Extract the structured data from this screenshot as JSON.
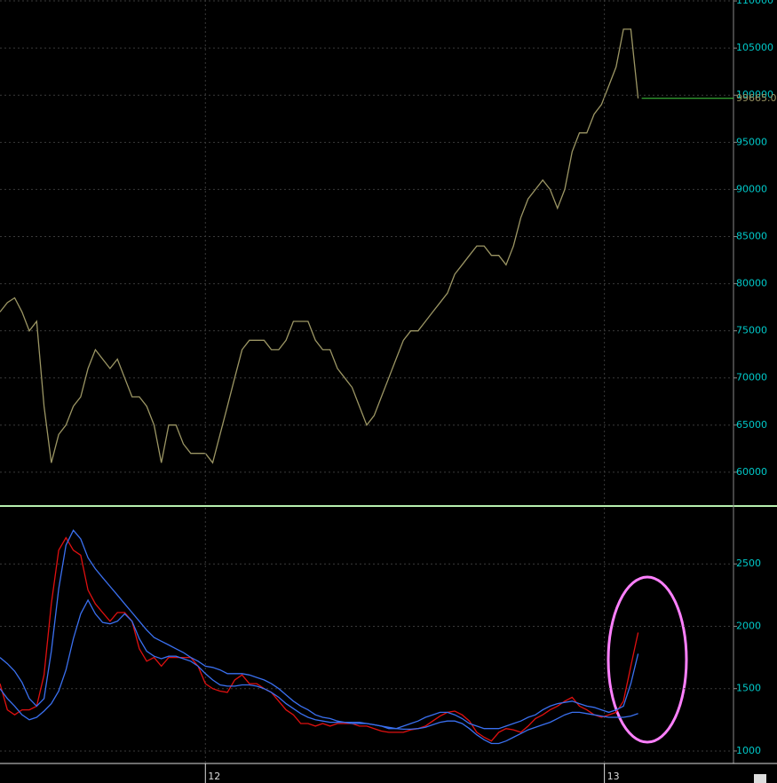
{
  "chart_data": [
    {
      "type": "line",
      "color": "#9c9664",
      "x": [
        0,
        1,
        2,
        3,
        4,
        5,
        6,
        7,
        8,
        9,
        10,
        11,
        12,
        13,
        14,
        15,
        16,
        17,
        18,
        19,
        20,
        21,
        22,
        23,
        24,
        25,
        26,
        27,
        28,
        29,
        30,
        31,
        32,
        33,
        34,
        35,
        36,
        37,
        38,
        39,
        40,
        41,
        42,
        43,
        44,
        45,
        46,
        47,
        48,
        49,
        50,
        51,
        52,
        53,
        54,
        55,
        56,
        57,
        58,
        59,
        60,
        61,
        62,
        63,
        64,
        65,
        66,
        67,
        68,
        69,
        70,
        71,
        72,
        73,
        74,
        75,
        76,
        77,
        78,
        79,
        80,
        81,
        82,
        83,
        84,
        85,
        86,
        87
      ],
      "values": [
        77000,
        78000,
        78500,
        77000,
        75000,
        76000,
        67000,
        61000,
        64000,
        65000,
        67000,
        68000,
        71000,
        73000,
        72000,
        71000,
        72000,
        70000,
        68000,
        68000,
        67000,
        65000,
        61000,
        65000,
        65000,
        63000,
        62000,
        62000,
        62000,
        61000,
        64000,
        67000,
        70000,
        73000,
        74000,
        74000,
        74000,
        73000,
        73000,
        74000,
        76000,
        76000,
        76000,
        74000,
        73000,
        73000,
        71000,
        70000,
        69000,
        67000,
        65000,
        66000,
        68000,
        70000,
        72000,
        74000,
        75000,
        75000,
        76000,
        77000,
        78000,
        79000,
        81000,
        82000,
        83000,
        84000,
        84000,
        83000,
        83000,
        82000,
        84000,
        87000,
        89000,
        90000,
        91000,
        90000,
        88000,
        90000,
        94000,
        96000,
        96000,
        98000,
        99000,
        101000,
        103000,
        107000,
        107000,
        99665
      ],
      "xlim": [
        0,
        100
      ],
      "ylim": [
        56600,
        110100
      ],
      "yticks": [
        60000,
        65000,
        70000,
        75000,
        80000,
        85000,
        90000,
        95000,
        100000,
        105000,
        110000
      ],
      "annotations": [
        {
          "value": 99665,
          "label": "99665.0"
        }
      ],
      "grid": true
    },
    {
      "type": "line",
      "x": [
        0,
        1,
        2,
        3,
        4,
        5,
        6,
        7,
        8,
        9,
        10,
        11,
        12,
        13,
        14,
        15,
        16,
        17,
        18,
        19,
        20,
        21,
        22,
        23,
        24,
        25,
        26,
        27,
        28,
        29,
        30,
        31,
        32,
        33,
        34,
        35,
        36,
        37,
        38,
        39,
        40,
        41,
        42,
        43,
        44,
        45,
        46,
        47,
        48,
        49,
        50,
        51,
        52,
        53,
        54,
        55,
        56,
        57,
        58,
        59,
        60,
        61,
        62,
        63,
        64,
        65,
        66,
        67,
        68,
        69,
        70,
        71,
        72,
        73,
        74,
        75,
        76,
        77,
        78,
        79,
        80,
        81,
        82,
        83,
        84,
        85,
        86,
        87
      ],
      "series": [
        {
          "color": "#e01010",
          "values": [
            1540,
            1330,
            1290,
            1330,
            1330,
            1360,
            1610,
            2180,
            2610,
            2710,
            2610,
            2570,
            2290,
            2180,
            2110,
            2040,
            2110,
            2110,
            2040,
            1820,
            1720,
            1750,
            1680,
            1750,
            1750,
            1750,
            1750,
            1680,
            1540,
            1500,
            1480,
            1470,
            1570,
            1610,
            1540,
            1540,
            1500,
            1470,
            1400,
            1330,
            1290,
            1220,
            1220,
            1200,
            1220,
            1200,
            1220,
            1220,
            1220,
            1200,
            1200,
            1180,
            1160,
            1150,
            1150,
            1150,
            1170,
            1180,
            1200,
            1240,
            1280,
            1310,
            1320,
            1290,
            1240,
            1150,
            1110,
            1080,
            1150,
            1180,
            1170,
            1150,
            1200,
            1260,
            1290,
            1330,
            1360,
            1400,
            1430,
            1360,
            1330,
            1290,
            1270,
            1290,
            1310,
            1400,
            1680,
            1950
          ]
        },
        {
          "color": "#3a70f0",
          "values": [
            1750,
            1700,
            1640,
            1550,
            1420,
            1360,
            1420,
            1800,
            2300,
            2650,
            2770,
            2700,
            2550,
            2460,
            2390,
            2320,
            2250,
            2180,
            2110,
            2040,
            1970,
            1910,
            1880,
            1850,
            1820,
            1790,
            1750,
            1720,
            1680,
            1670,
            1650,
            1620,
            1620,
            1620,
            1610,
            1590,
            1570,
            1540,
            1500,
            1450,
            1400,
            1360,
            1330,
            1290,
            1270,
            1260,
            1240,
            1230,
            1220,
            1220,
            1220,
            1210,
            1200,
            1180,
            1180,
            1200,
            1220,
            1240,
            1270,
            1290,
            1310,
            1310,
            1290,
            1260,
            1220,
            1200,
            1180,
            1180,
            1180,
            1200,
            1220,
            1240,
            1270,
            1290,
            1330,
            1360,
            1380,
            1390,
            1400,
            1380,
            1360,
            1350,
            1330,
            1310,
            1330,
            1360,
            1540,
            1780
          ]
        },
        {
          "color": "#3a70f0",
          "values": [
            1500,
            1420,
            1360,
            1290,
            1250,
            1270,
            1320,
            1380,
            1480,
            1650,
            1900,
            2100,
            2210,
            2100,
            2030,
            2020,
            2040,
            2100,
            2040,
            1900,
            1800,
            1760,
            1740,
            1760,
            1760,
            1740,
            1720,
            1680,
            1620,
            1570,
            1530,
            1520,
            1520,
            1530,
            1530,
            1520,
            1500,
            1470,
            1430,
            1380,
            1340,
            1300,
            1270,
            1250,
            1240,
            1230,
            1230,
            1230,
            1230,
            1230,
            1220,
            1210,
            1200,
            1190,
            1180,
            1175,
            1175,
            1180,
            1190,
            1210,
            1230,
            1240,
            1240,
            1220,
            1180,
            1130,
            1090,
            1060,
            1060,
            1080,
            1110,
            1140,
            1170,
            1190,
            1210,
            1230,
            1260,
            1290,
            1310,
            1310,
            1300,
            1290,
            1280,
            1270,
            1270,
            1270,
            1280,
            1300
          ]
        }
      ],
      "xlim": [
        0,
        100
      ],
      "ylim": [
        900,
        2950
      ],
      "xticks": [
        {
          "value": 28,
          "label": "12"
        },
        {
          "value": 82.4,
          "label": "13"
        }
      ],
      "yticks": [
        1000,
        1500,
        2000,
        2500
      ],
      "grid": true
    }
  ]
}
